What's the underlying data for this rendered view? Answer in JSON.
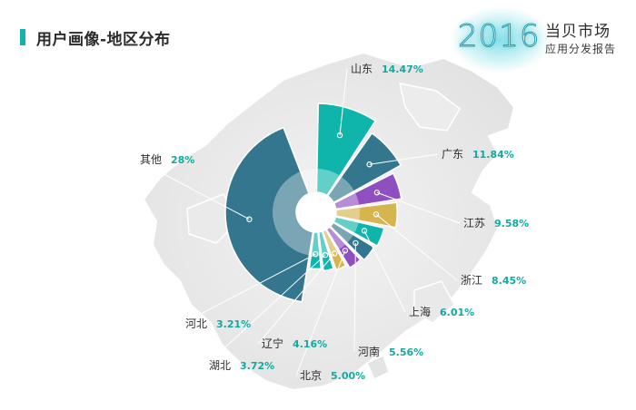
{
  "page": {
    "title": "用户画像-地区分布"
  },
  "brand": {
    "year": "2016",
    "name": "当贝市场",
    "subtitle": "应用分发报告"
  },
  "colors": {
    "teal": "#0fb5ab",
    "slate": "#33768e",
    "purple": "#8f4fc0",
    "gold": "#d6b44e",
    "accent": "#14a9a0"
  },
  "chart_data": {
    "type": "polar-bar",
    "title": "",
    "categories": [
      "山东",
      "广东",
      "江苏",
      "浙江",
      "上海",
      "河南",
      "北京",
      "辽宁",
      "湖北",
      "河北",
      "其他"
    ],
    "values": [
      14.47,
      11.84,
      9.58,
      8.45,
      6.01,
      5.56,
      5.0,
      4.16,
      3.72,
      3.21,
      28.0
    ],
    "value_labels": [
      "14.47%",
      "11.84%",
      "9.58%",
      "8.45%",
      "6.01%",
      "5.56%",
      "5.00%",
      "4.16%",
      "3.72%",
      "3.21%",
      "28%"
    ],
    "slice_colors": [
      "teal",
      "slate",
      "purple",
      "gold",
      "teal",
      "slate",
      "purple",
      "gold",
      "teal",
      "teal",
      "slate"
    ]
  }
}
